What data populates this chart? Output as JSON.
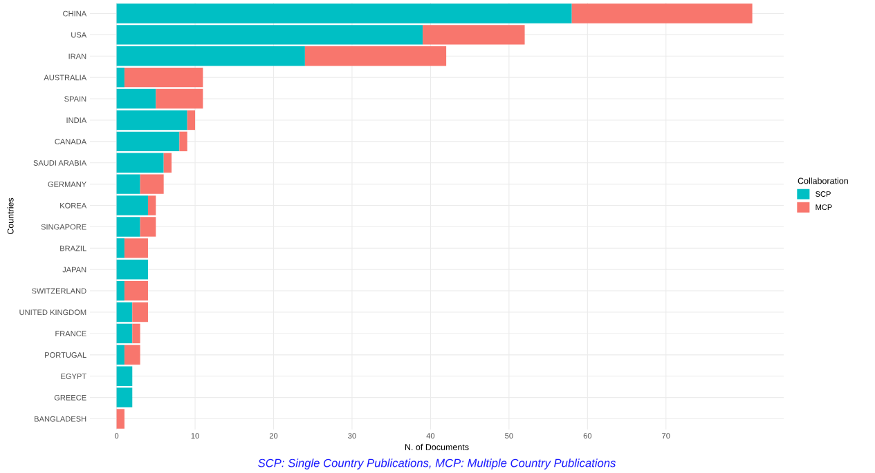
{
  "chart_data": {
    "type": "bar",
    "orientation": "horizontal",
    "stacked": true,
    "categories": [
      "CHINA",
      "USA",
      "IRAN",
      "AUSTRALIA",
      "SPAIN",
      "INDIA",
      "CANADA",
      "SAUDI ARABIA",
      "GERMANY",
      "KOREA",
      "SINGAPORE",
      "BRAZIL",
      "JAPAN",
      "SWITZERLAND",
      "UNITED KINGDOM",
      "FRANCE",
      "PORTUGAL",
      "EGYPT",
      "GREECE",
      "BANGLADESH"
    ],
    "series": [
      {
        "name": "SCP",
        "color": "#00bfc4",
        "values": [
          58,
          39,
          24,
          1,
          5,
          9,
          8,
          6,
          3,
          4,
          3,
          1,
          4,
          1,
          2,
          2,
          1,
          2,
          2,
          0
        ]
      },
      {
        "name": "MCP",
        "color": "#f8766d",
        "values": [
          23,
          13,
          18,
          10,
          6,
          1,
          1,
          1,
          3,
          1,
          2,
          3,
          0,
          3,
          2,
          1,
          2,
          0,
          0,
          1
        ]
      }
    ],
    "xlim": [
      -3.4,
      85
    ],
    "xticks": [
      0,
      10,
      20,
      30,
      40,
      50,
      60,
      70
    ],
    "xlabel": "N. of Documents",
    "ylabel": "Countries",
    "legend_title": "Collaboration",
    "legend": "right",
    "grid": true,
    "annotations": [
      "SCP: Single Country Publications, MCP: Multiple Country Publications"
    ]
  }
}
